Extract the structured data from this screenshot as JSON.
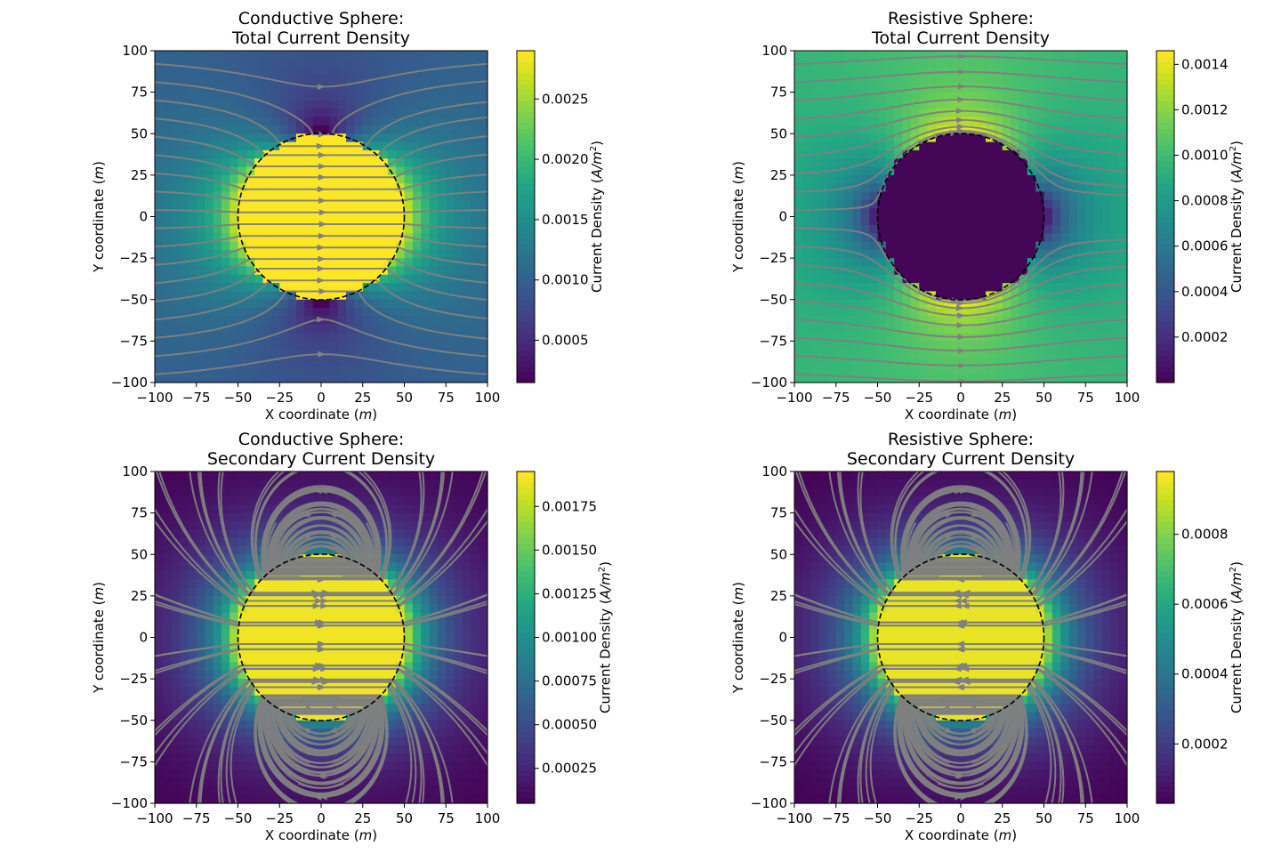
{
  "figure": {
    "xlabel_prefix": "X coordinate (",
    "xlabel_unit": "m",
    "xlabel_suffix": ")",
    "ylabel_prefix": "Y coordinate (",
    "ylabel_unit": "m",
    "ylabel_suffix": ")",
    "colorbar_label_prefix": "Current Density (",
    "colorbar_label_unit": "A/m",
    "colorbar_label_exp": "2",
    "colorbar_label_suffix": ")",
    "colormap": "viridis",
    "streamline_color": "#808080",
    "boundary_color": "#000000"
  },
  "chart_data": [
    {
      "type": "heatmap",
      "title_line1": "Conductive Sphere:",
      "title_line2": "Total Current Density",
      "field": "total",
      "sphere": "conductive",
      "sphere_radius": 50,
      "xlim": [
        -100,
        100
      ],
      "ylim": [
        -100,
        100
      ],
      "xticks": [
        "−100",
        "−75",
        "−50",
        "−25",
        "0",
        "25",
        "50",
        "75",
        "100"
      ],
      "yticks": [
        "−100",
        "−75",
        "−50",
        "−25",
        "0",
        "25",
        "50",
        "75",
        "100"
      ],
      "clim": [
        0.00015,
        0.0029
      ],
      "cbticks": [
        0.0005,
        0.001,
        0.0015,
        0.002,
        0.0025
      ],
      "cbticklabels": [
        "0.0005",
        "0.0010",
        "0.0015",
        "0.0020",
        "0.0025"
      ]
    },
    {
      "type": "heatmap",
      "title_line1": "Resistive Sphere:",
      "title_line2": "Total Current Density",
      "field": "total",
      "sphere": "resistive",
      "sphere_radius": 50,
      "xlim": [
        -100,
        100
      ],
      "ylim": [
        -100,
        100
      ],
      "xticks": [
        "−100",
        "−75",
        "−50",
        "−25",
        "0",
        "25",
        "50",
        "75",
        "100"
      ],
      "yticks": [
        "−100",
        "−75",
        "−50",
        "−25",
        "0",
        "25",
        "50",
        "75",
        "100"
      ],
      "clim": [
        0.0,
        0.00146
      ],
      "cbticks": [
        0.0002,
        0.0004,
        0.0006,
        0.0008,
        0.001,
        0.0012,
        0.0014
      ],
      "cbticklabels": [
        "0.0002",
        "0.0004",
        "0.0006",
        "0.0008",
        "0.0010",
        "0.0012",
        "0.0014"
      ]
    },
    {
      "type": "heatmap",
      "title_line1": "Conductive Sphere:",
      "title_line2": "Secondary Current Density",
      "field": "secondary",
      "sphere": "conductive",
      "sphere_radius": 50,
      "xlim": [
        -100,
        100
      ],
      "ylim": [
        -100,
        100
      ],
      "xticks": [
        "−100",
        "−75",
        "−50",
        "−25",
        "0",
        "25",
        "50",
        "75",
        "100"
      ],
      "yticks": [
        "−100",
        "−75",
        "−50",
        "−25",
        "0",
        "25",
        "50",
        "75",
        "100"
      ],
      "clim": [
        5e-05,
        0.00195
      ],
      "cbticks": [
        0.00025,
        0.0005,
        0.00075,
        0.001,
        0.00125,
        0.0015,
        0.00175
      ],
      "cbticklabels": [
        "0.00025",
        "0.00050",
        "0.00075",
        "0.00100",
        "0.00125",
        "0.00150",
        "0.00175"
      ]
    },
    {
      "type": "heatmap",
      "title_line1": "Resistive Sphere:",
      "title_line2": "Secondary Current Density",
      "field": "secondary",
      "sphere": "resistive",
      "sphere_radius": 50,
      "xlim": [
        -100,
        100
      ],
      "ylim": [
        -100,
        100
      ],
      "xticks": [
        "−100",
        "−75",
        "−50",
        "−25",
        "0",
        "25",
        "50",
        "75",
        "100"
      ],
      "yticks": [
        "−100",
        "−75",
        "−50",
        "−25",
        "0",
        "25",
        "50",
        "75",
        "100"
      ],
      "clim": [
        3e-05,
        0.00098
      ],
      "cbticks": [
        0.0002,
        0.0004,
        0.0006,
        0.0008
      ],
      "cbticklabels": [
        "0.0002",
        "0.0004",
        "0.0006",
        "0.0008"
      ]
    }
  ]
}
